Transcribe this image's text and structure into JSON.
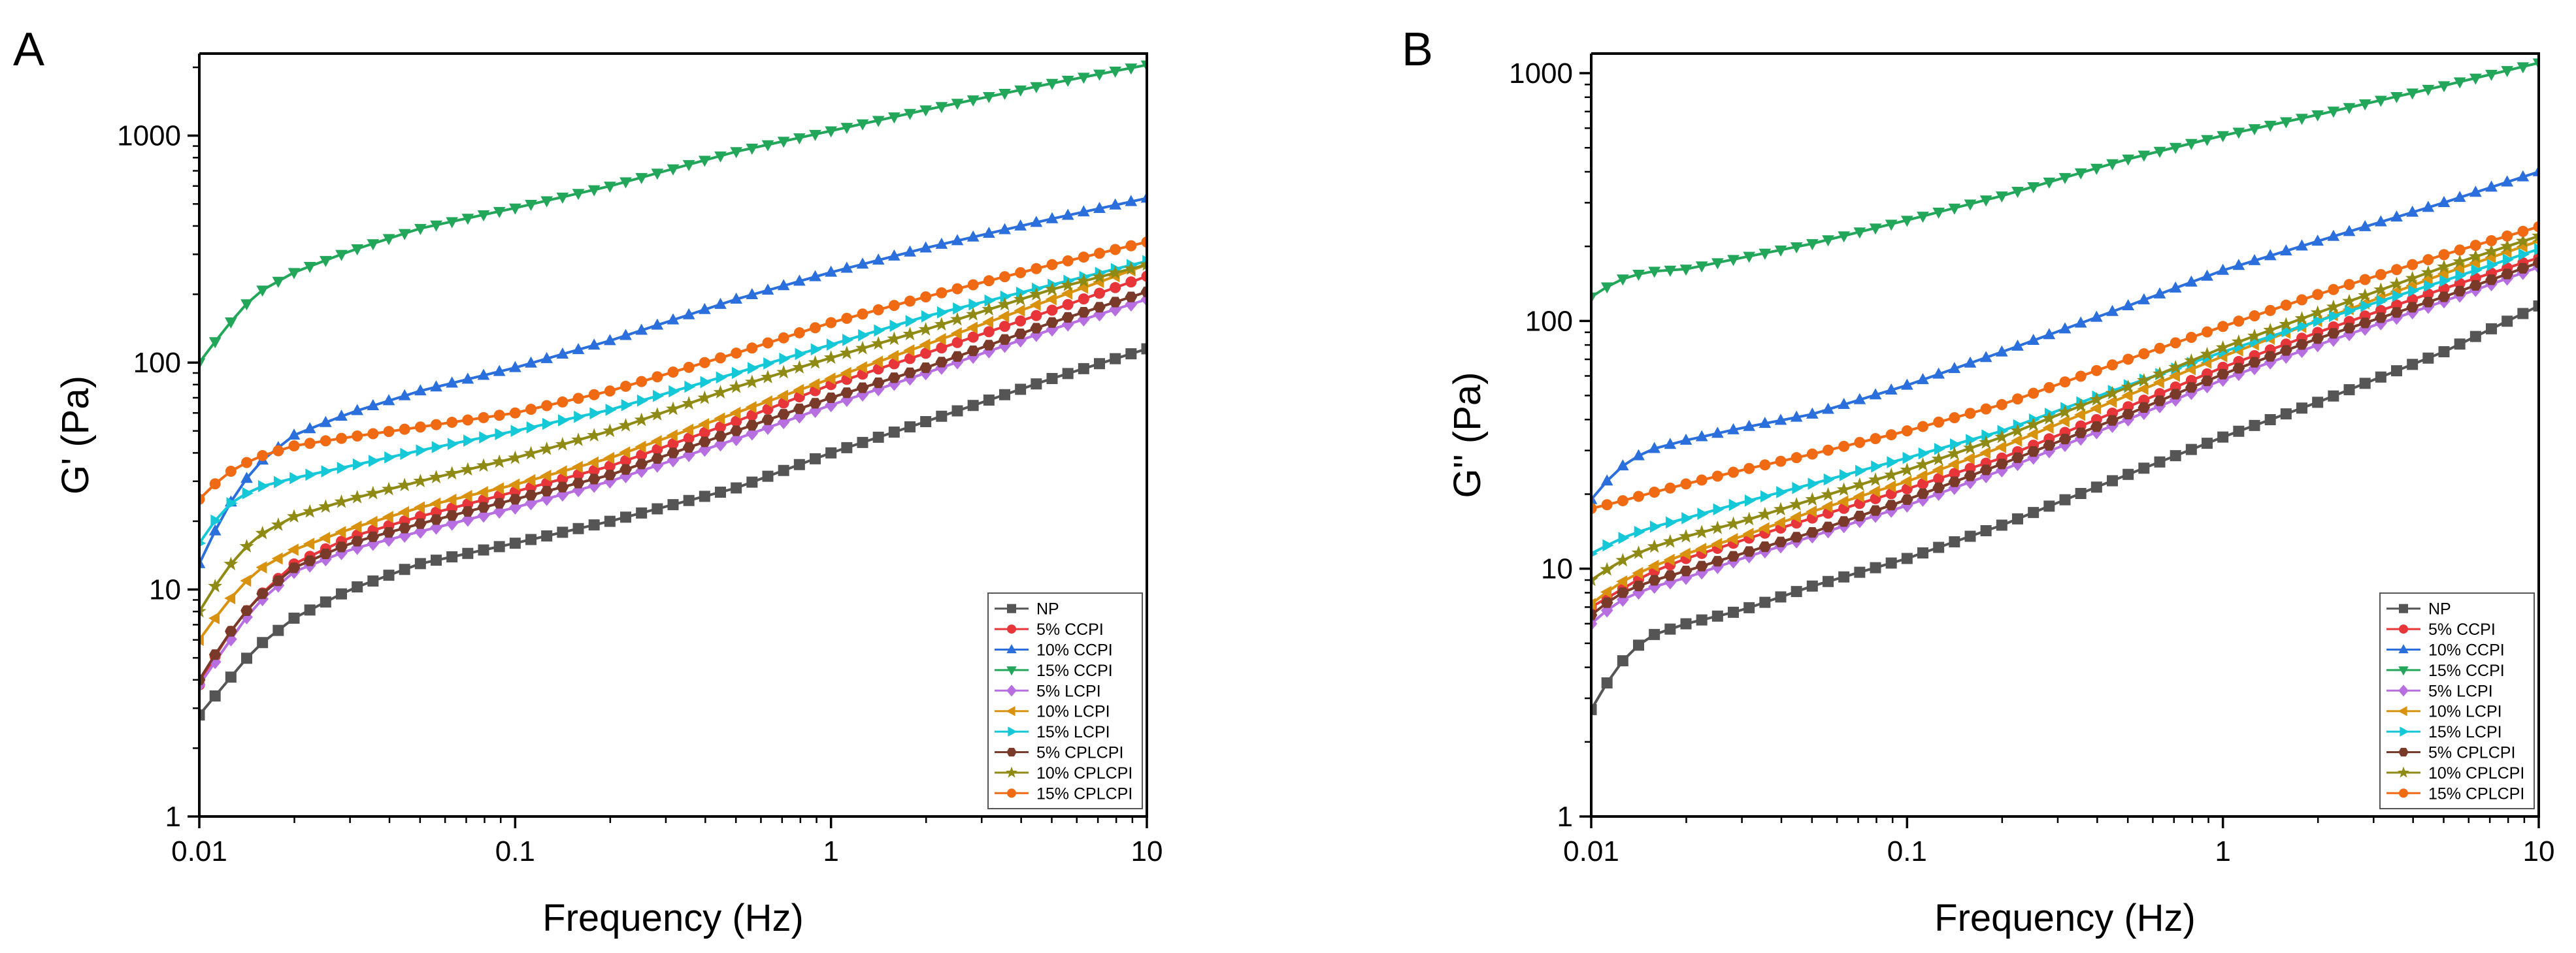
{
  "chart_data": [
    {
      "type": "line",
      "panel_label": "A",
      "xlabel": "Frequency (Hz)",
      "ylabel": "G' (Pa)",
      "xscale": "log",
      "yscale": "log",
      "xlim": [
        0.01,
        10
      ],
      "ylim": [
        1,
        2300
      ],
      "x_ticks": [
        0.01,
        0.1,
        1,
        10
      ],
      "x_tick_labels": [
        "0.01",
        "0.1",
        "1",
        "10"
      ],
      "y_ticks": [
        1,
        10,
        100,
        1000
      ],
      "y_tick_labels": [
        "1",
        "10",
        "100",
        "1000"
      ],
      "legend_position": "bottom-right",
      "series": [
        {
          "name": "NP",
          "color": "#555555",
          "marker": "square",
          "x": [
            0.01,
            0.012,
            0.015,
            0.02,
            0.03,
            0.05,
            0.1,
            0.2,
            0.5,
            1,
            2,
            5,
            10
          ],
          "y": [
            2.8,
            3.8,
            5.5,
            7.5,
            10,
            13,
            16,
            20,
            28,
            40,
            55,
            85,
            115
          ]
        },
        {
          "name": "5% CCPI",
          "color": "#e8353a",
          "marker": "circle",
          "x": [
            0.01,
            0.012,
            0.015,
            0.02,
            0.03,
            0.05,
            0.1,
            0.2,
            0.5,
            1,
            2,
            5,
            10
          ],
          "y": [
            3.8,
            6,
            9,
            13,
            17,
            21,
            27,
            35,
            55,
            80,
            110,
            170,
            240
          ]
        },
        {
          "name": "10% CCPI",
          "color": "#2a6fdb",
          "marker": "triangle-up",
          "x": [
            0.01,
            0.012,
            0.015,
            0.02,
            0.03,
            0.05,
            0.1,
            0.2,
            0.5,
            1,
            2,
            5,
            10
          ],
          "y": [
            13,
            22,
            35,
            48,
            60,
            75,
            95,
            125,
            190,
            250,
            320,
            430,
            530
          ]
        },
        {
          "name": "15% CCPI",
          "color": "#22a65a",
          "marker": "triangle-down",
          "x": [
            0.01,
            0.012,
            0.015,
            0.02,
            0.03,
            0.05,
            0.1,
            0.2,
            0.5,
            1,
            2,
            5,
            10
          ],
          "y": [
            100,
            140,
            200,
            250,
            310,
            390,
            480,
            600,
            850,
            1050,
            1300,
            1700,
            2050
          ]
        },
        {
          "name": "5% LCPI",
          "color": "#b76ee0",
          "marker": "diamond",
          "x": [
            0.01,
            0.012,
            0.015,
            0.02,
            0.03,
            0.05,
            0.1,
            0.2,
            0.5,
            1,
            2,
            5,
            10
          ],
          "y": [
            3.8,
            5.5,
            8.5,
            12,
            15,
            18,
            23,
            30,
            46,
            65,
            90,
            140,
            190
          ]
        },
        {
          "name": "10% LCPI",
          "color": "#d9920e",
          "marker": "triangle-left",
          "x": [
            0.01,
            0.012,
            0.015,
            0.02,
            0.03,
            0.05,
            0.1,
            0.2,
            0.5,
            1,
            2,
            5,
            10
          ],
          "y": [
            6,
            8.5,
            12,
            15,
            18.5,
            23,
            29,
            38,
            60,
            85,
            120,
            190,
            270
          ]
        },
        {
          "name": "15% LCPI",
          "color": "#14c8d8",
          "marker": "triangle-right",
          "x": [
            0.01,
            0.012,
            0.015,
            0.02,
            0.03,
            0.05,
            0.1,
            0.2,
            0.5,
            1,
            2,
            5,
            10
          ],
          "y": [
            16,
            23,
            28,
            31,
            35,
            41,
            50,
            62,
            90,
            120,
            160,
            220,
            280
          ]
        },
        {
          "name": "5% CPLCPI",
          "color": "#7a3a2a",
          "marker": "hexagon",
          "x": [
            0.01,
            0.012,
            0.015,
            0.02,
            0.03,
            0.05,
            0.1,
            0.2,
            0.5,
            1,
            2,
            5,
            10
          ],
          "y": [
            4,
            6,
            9,
            12.5,
            16,
            19.5,
            25,
            32,
            50,
            70,
            95,
            150,
            205
          ]
        },
        {
          "name": "10% CPLCPI",
          "color": "#8f8a14",
          "marker": "star",
          "x": [
            0.01,
            0.012,
            0.015,
            0.02,
            0.03,
            0.05,
            0.1,
            0.2,
            0.5,
            1,
            2,
            5,
            10
          ],
          "y": [
            8,
            12,
            17,
            21,
            25,
            30,
            38,
            50,
            78,
            105,
            140,
            210,
            270
          ]
        },
        {
          "name": "15% CPLCPI",
          "color": "#f06a14",
          "marker": "circle",
          "x": [
            0.01,
            0.012,
            0.015,
            0.02,
            0.03,
            0.05,
            0.1,
            0.2,
            0.5,
            1,
            2,
            5,
            10
          ],
          "y": [
            25,
            32,
            38,
            43,
            47,
            52,
            60,
            75,
            110,
            150,
            195,
            270,
            340
          ]
        }
      ]
    },
    {
      "type": "line",
      "panel_label": "B",
      "xlabel": "Frequency (Hz)",
      "ylabel": "G'' (Pa)",
      "xscale": "log",
      "yscale": "log",
      "xlim": [
        0.01,
        10
      ],
      "ylim": [
        1,
        1200
      ],
      "x_ticks": [
        0.01,
        0.1,
        1,
        10
      ],
      "x_tick_labels": [
        "0.01",
        "0.1",
        "1",
        "10"
      ],
      "y_ticks": [
        1,
        10,
        100,
        1000
      ],
      "y_tick_labels": [
        "1",
        "10",
        "100",
        "1000"
      ],
      "legend_position": "bottom-right",
      "series": [
        {
          "name": "NP",
          "color": "#555555",
          "marker": "square",
          "x": [
            0.01,
            0.012,
            0.015,
            0.02,
            0.03,
            0.05,
            0.1,
            0.2,
            0.5,
            1,
            2,
            5,
            10
          ],
          "y": [
            2.7,
            4,
            5.3,
            6,
            6.8,
            8.5,
            11,
            15,
            24,
            34,
            47,
            75,
            115
          ]
        },
        {
          "name": "5% CCPI",
          "color": "#e8353a",
          "marker": "circle",
          "x": [
            0.01,
            0.012,
            0.015,
            0.02,
            0.03,
            0.05,
            0.1,
            0.2,
            0.5,
            1,
            2,
            5,
            10
          ],
          "y": [
            7,
            8,
            9.5,
            11,
            13,
            16,
            21,
            28,
            45,
            65,
            90,
            135,
            180
          ]
        },
        {
          "name": "10% CCPI",
          "color": "#2a6fdb",
          "marker": "triangle-up",
          "x": [
            0.01,
            0.012,
            0.015,
            0.02,
            0.03,
            0.05,
            0.1,
            0.2,
            0.5,
            1,
            2,
            5,
            10
          ],
          "y": [
            19,
            25,
            30,
            33,
            37,
            42,
            55,
            75,
            115,
            160,
            210,
            300,
            400
          ]
        },
        {
          "name": "15% CCPI",
          "color": "#22a65a",
          "marker": "triangle-down",
          "x": [
            0.01,
            0.012,
            0.015,
            0.02,
            0.03,
            0.05,
            0.1,
            0.2,
            0.5,
            1,
            2,
            5,
            10
          ],
          "y": [
            125,
            145,
            158,
            162,
            180,
            205,
            255,
            320,
            450,
            560,
            680,
            890,
            1100
          ]
        },
        {
          "name": "5% LCPI",
          "color": "#b76ee0",
          "marker": "diamond",
          "x": [
            0.01,
            0.012,
            0.015,
            0.02,
            0.03,
            0.05,
            0.1,
            0.2,
            0.5,
            1,
            2,
            5,
            10
          ],
          "y": [
            6,
            7.3,
            8.3,
            9.2,
            11,
            13.5,
            18,
            25,
            40,
            58,
            80,
            120,
            165
          ]
        },
        {
          "name": "10% LCPI",
          "color": "#d9920e",
          "marker": "triangle-left",
          "x": [
            0.01,
            0.012,
            0.015,
            0.02,
            0.03,
            0.05,
            0.1,
            0.2,
            0.5,
            1,
            2,
            5,
            10
          ],
          "y": [
            7.2,
            8.6,
            10,
            11.5,
            13.5,
            17,
            22.5,
            31,
            50,
            72,
            100,
            155,
            210
          ]
        },
        {
          "name": "15% LCPI",
          "color": "#14c8d8",
          "marker": "triangle-right",
          "x": [
            0.01,
            0.012,
            0.015,
            0.02,
            0.03,
            0.05,
            0.1,
            0.2,
            0.5,
            1,
            2,
            5,
            10
          ],
          "y": [
            11.5,
            13,
            14.5,
            16,
            18.5,
            22,
            28,
            36,
            55,
            75,
            100,
            145,
            195
          ]
        },
        {
          "name": "5% CPLCPI",
          "color": "#7a3a2a",
          "marker": "hexagon",
          "x": [
            0.01,
            0.012,
            0.015,
            0.02,
            0.03,
            0.05,
            0.1,
            0.2,
            0.5,
            1,
            2,
            5,
            10
          ],
          "y": [
            6.5,
            7.8,
            8.8,
            9.8,
            11.5,
            14,
            19,
            26.5,
            42,
            61,
            85,
            125,
            172
          ]
        },
        {
          "name": "10% CPLCPI",
          "color": "#8f8a14",
          "marker": "star",
          "x": [
            0.01,
            0.012,
            0.015,
            0.02,
            0.03,
            0.05,
            0.1,
            0.2,
            0.5,
            1,
            2,
            5,
            10
          ],
          "y": [
            9,
            10.5,
            12,
            13.5,
            15.5,
            19,
            25,
            34,
            54,
            78,
            108,
            165,
            220
          ]
        },
        {
          "name": "15% CPLCPI",
          "color": "#f06a14",
          "marker": "circle",
          "x": [
            0.01,
            0.012,
            0.015,
            0.02,
            0.03,
            0.05,
            0.1,
            0.2,
            0.5,
            1,
            2,
            5,
            10
          ],
          "y": [
            17.5,
            18.5,
            20,
            22,
            25,
            29,
            36,
            46,
            70,
            95,
            128,
            185,
            240
          ]
        }
      ]
    }
  ]
}
